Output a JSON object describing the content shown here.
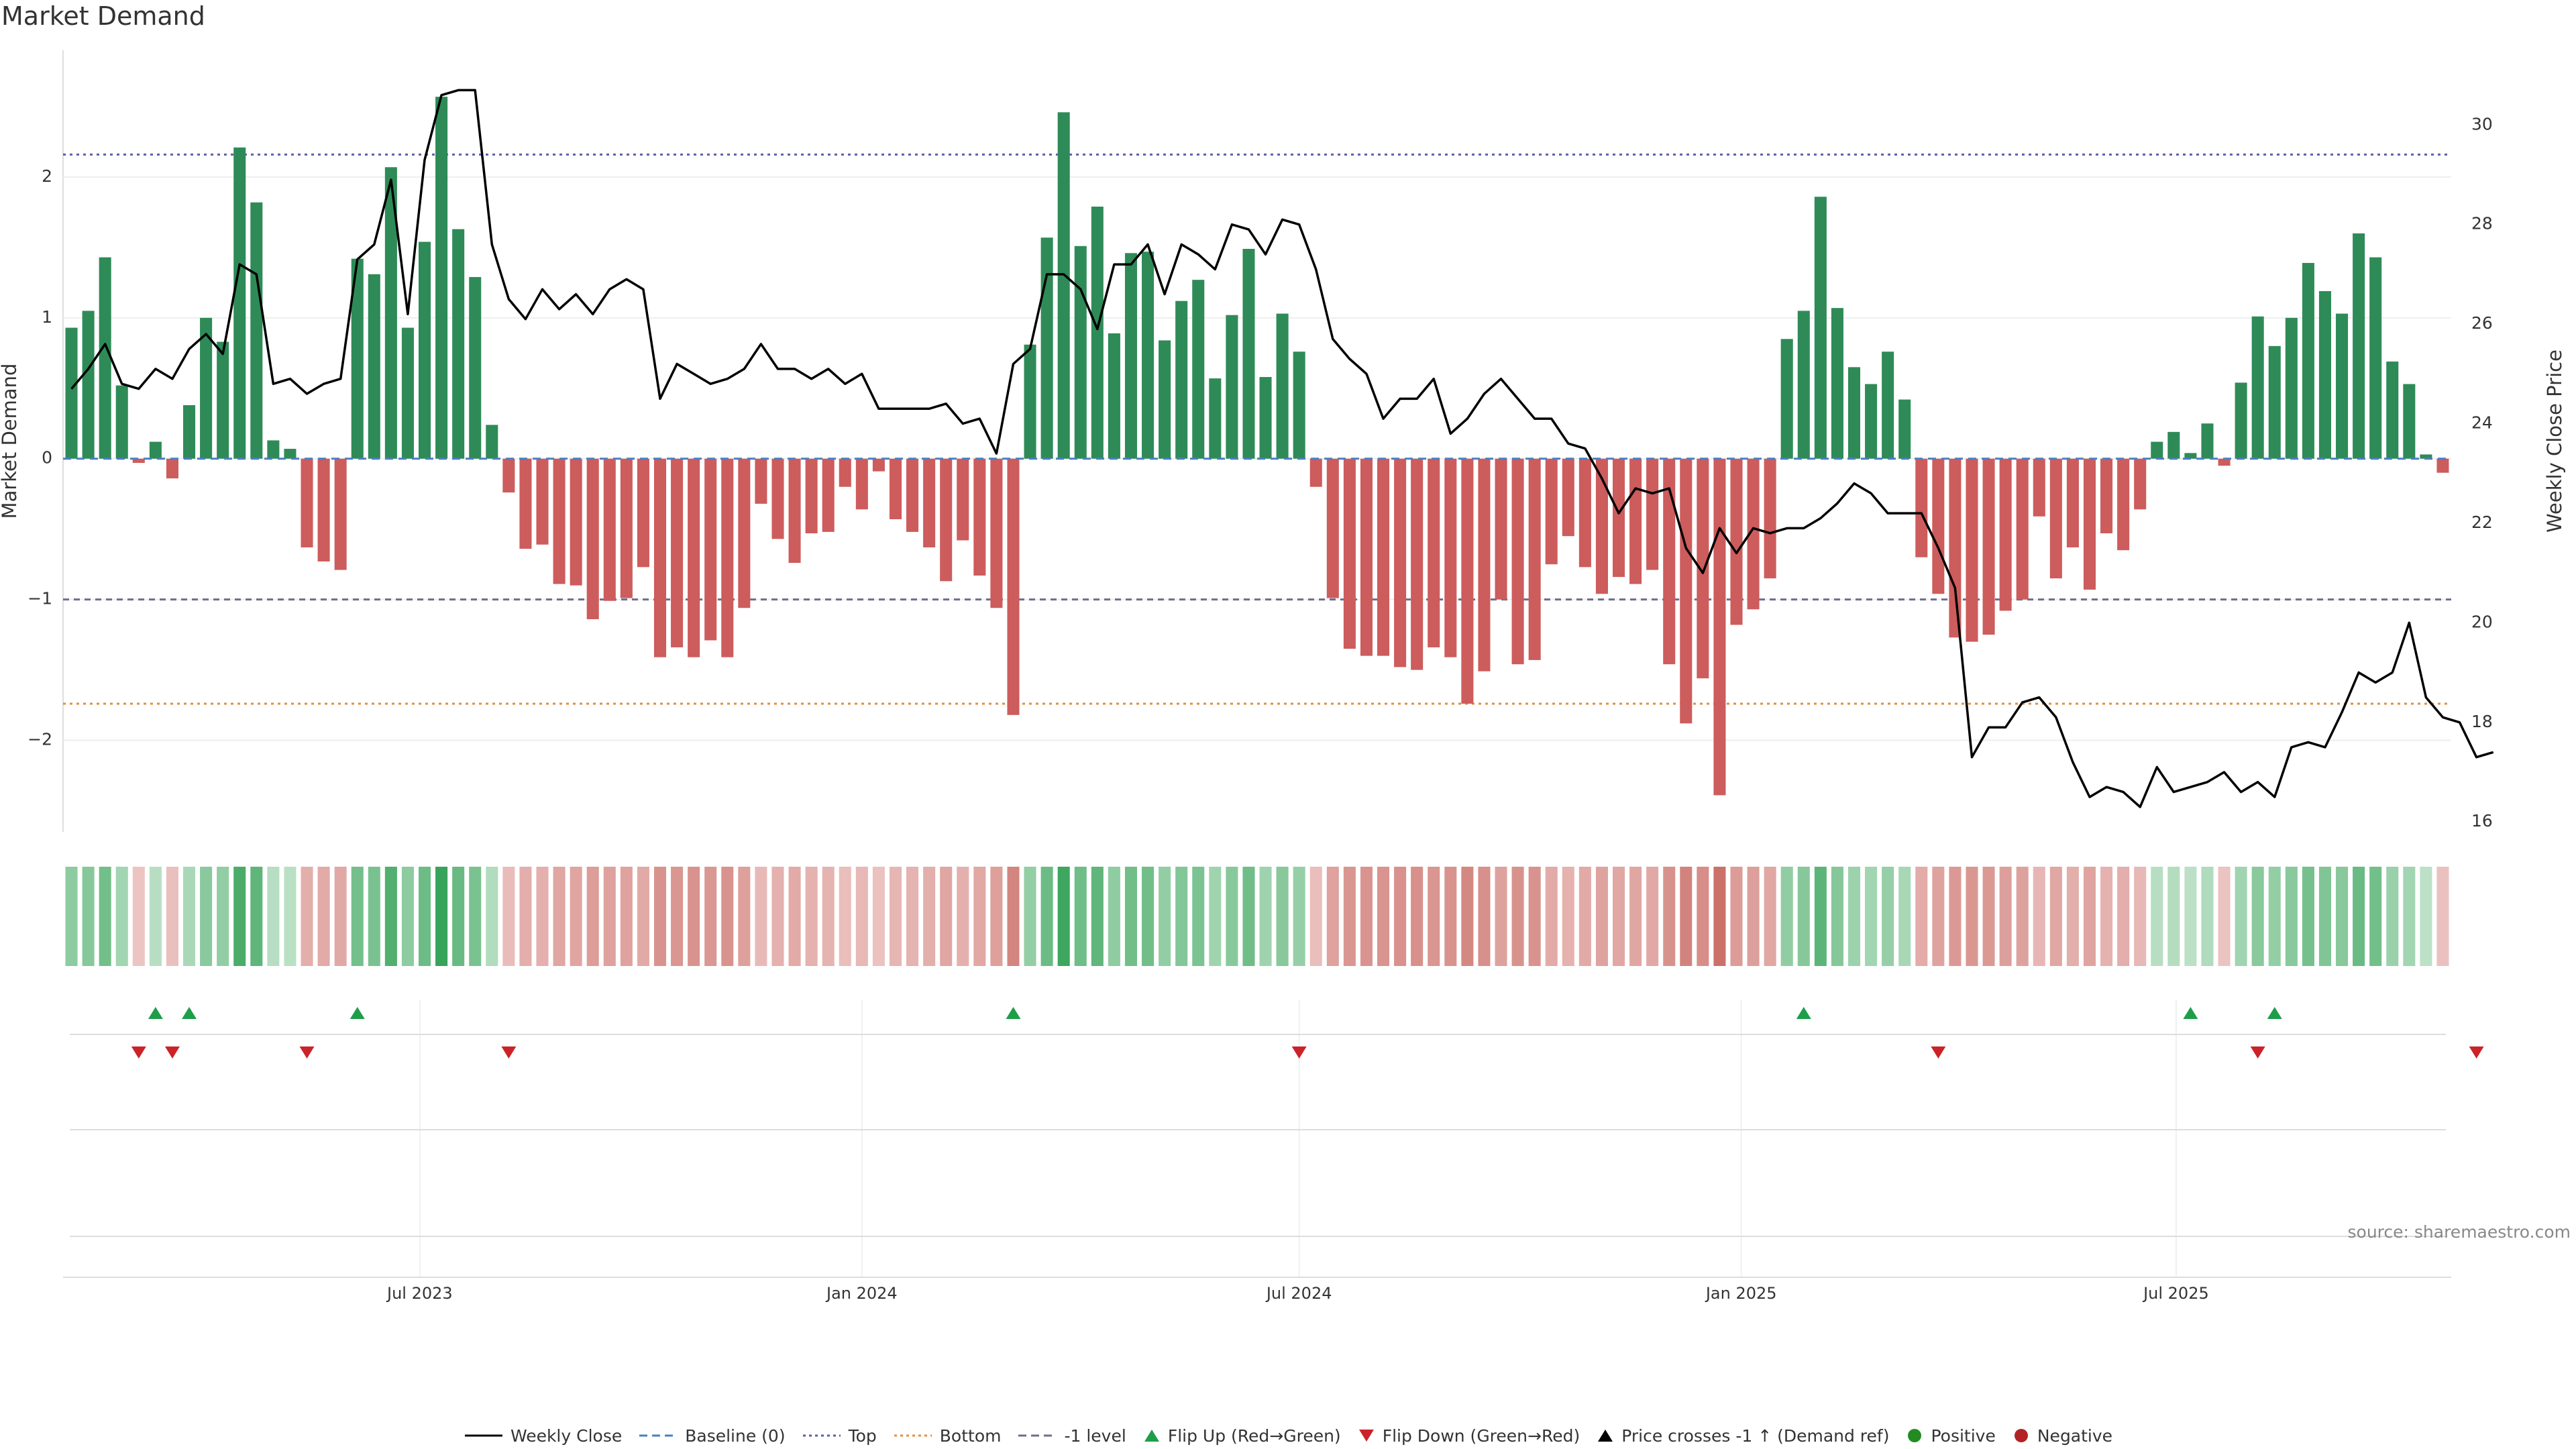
{
  "chart_data": {
    "type": "bar",
    "title": "Market Demand",
    "ylabel_left": "Market Demand",
    "ylabel_right": "Weekly Close Price",
    "source": "source: sharemaestro.com",
    "start_date": "2023-02-06",
    "interval_days": 7,
    "ylim_left": [
      -2.65,
      2.9
    ],
    "ylim_right": [
      15.8,
      31.5
    ],
    "yticks_left": [
      "2",
      "1",
      "0",
      "−1",
      "−2"
    ],
    "yticks_right": [
      "30",
      "28",
      "26",
      "24",
      "22",
      "20",
      "18",
      "16"
    ],
    "xticks": [
      {
        "label": "Jul 2023",
        "date": "2023-07-01"
      },
      {
        "label": "Jan 2024",
        "date": "2024-01-01"
      },
      {
        "label": "Jul 2024",
        "date": "2024-07-01"
      },
      {
        "label": "Jan 2025",
        "date": "2025-01-01"
      },
      {
        "label": "Jul 2025",
        "date": "2025-07-01"
      }
    ],
    "reference_lines": [
      {
        "name": "Top",
        "value": 2.16,
        "color": "#5b5fa8",
        "style": "dotted"
      },
      {
        "name": "-1 level",
        "value": -1.0,
        "color": "#6e6e8a",
        "style": "dashed"
      },
      {
        "name": "Bottom",
        "value": -1.74,
        "color": "#e0913c",
        "style": "dotted"
      }
    ],
    "colors": {
      "positive": "#2e8b57",
      "negative": "#cd5c5c",
      "price": "#000000",
      "flip_up": "#1e9e4a",
      "flip_down": "#cc2229"
    },
    "demand": [
      0.93,
      1.05,
      1.43,
      0.52,
      -0.03,
      0.12,
      -0.14,
      0.38,
      1.0,
      0.83,
      2.21,
      1.82,
      0.13,
      0.07,
      -0.63,
      -0.73,
      -0.79,
      1.42,
      1.31,
      2.07,
      0.93,
      1.54,
      2.57,
      1.63,
      1.29,
      0.24,
      -0.24,
      -0.64,
      -0.61,
      -0.89,
      -0.9,
      -1.14,
      -1.01,
      -0.99,
      -0.77,
      -1.41,
      -1.34,
      -1.41,
      -1.29,
      -1.41,
      -1.06,
      -0.32,
      -0.57,
      -0.74,
      -0.53,
      -0.52,
      -0.2,
      -0.36,
      -0.09,
      -0.43,
      -0.52,
      -0.63,
      -0.87,
      -0.58,
      -0.83,
      -1.06,
      -1.82,
      0.81,
      1.57,
      2.46,
      1.51,
      1.79,
      0.89,
      1.46,
      1.47,
      0.84,
      1.12,
      1.27,
      0.57,
      1.02,
      1.49,
      0.58,
      1.03,
      0.76,
      -0.2,
      -0.99,
      -1.35,
      -1.4,
      -1.4,
      -1.48,
      -1.5,
      -1.34,
      -1.41,
      -1.74,
      -1.51,
      -1.0,
      -1.46,
      -1.43,
      -0.75,
      -0.55,
      -0.77,
      -0.96,
      -0.84,
      -0.89,
      -0.79,
      -1.46,
      -1.88,
      -1.56,
      -2.39,
      -1.18,
      -1.07,
      -0.85,
      0.85,
      1.05,
      1.86,
      1.07,
      0.65,
      0.53,
      0.76,
      0.42,
      -0.7,
      -0.96,
      -1.27,
      -1.3,
      -1.25,
      -1.08,
      -1.0,
      -0.41,
      -0.85,
      -0.63,
      -0.93,
      -0.53,
      -0.65,
      -0.36,
      0.12,
      0.19,
      0.04,
      0.25,
      -0.05,
      0.54,
      1.01,
      0.8,
      1.0,
      1.39,
      1.19,
      1.03,
      1.6,
      1.43,
      0.69,
      0.53,
      0.03,
      -0.1
    ],
    "price": [
      24.7,
      25.1,
      25.6,
      24.8,
      24.7,
      25.1,
      24.9,
      25.5,
      25.8,
      25.4,
      27.2,
      27.0,
      24.8,
      24.9,
      24.6,
      24.8,
      24.9,
      27.3,
      27.6,
      28.9,
      26.2,
      29.3,
      30.6,
      30.7,
      30.7,
      27.6,
      26.5,
      26.1,
      26.7,
      26.3,
      26.6,
      26.2,
      26.7,
      26.9,
      26.7,
      24.5,
      25.2,
      25.0,
      24.8,
      24.9,
      25.1,
      25.6,
      25.1,
      25.1,
      24.9,
      25.1,
      24.8,
      25.0,
      24.3,
      24.3,
      24.3,
      24.3,
      24.4,
      24.0,
      24.1,
      23.4,
      25.2,
      25.5,
      27.0,
      27.0,
      26.7,
      25.9,
      27.2,
      27.2,
      27.6,
      26.6,
      27.6,
      27.4,
      27.1,
      28.0,
      27.9,
      27.4,
      28.1,
      28.0,
      27.1,
      25.7,
      25.3,
      25.0,
      24.1,
      24.5,
      24.5,
      24.9,
      23.8,
      24.1,
      24.6,
      24.9,
      24.5,
      24.1,
      24.1,
      23.6,
      23.5,
      22.9,
      22.2,
      22.7,
      22.6,
      22.7,
      21.5,
      21.0,
      21.9,
      21.4,
      21.9,
      21.8,
      21.9,
      21.9,
      22.1,
      22.4,
      22.8,
      22.6,
      22.2,
      22.2,
      22.2,
      21.5,
      20.7,
      17.3,
      17.9,
      17.9,
      18.4,
      18.5,
      18.1,
      17.2,
      16.5,
      16.7,
      16.6,
      16.3,
      17.1,
      16.6,
      16.7,
      16.8,
      17.0,
      16.6,
      16.8,
      16.5,
      17.5,
      17.6,
      17.5,
      18.2,
      19.0,
      18.8,
      19.0,
      20.0,
      18.5,
      18.1,
      18.0,
      17.3,
      17.4
    ],
    "flip_up_index": [
      5,
      7,
      17,
      56,
      103,
      126,
      131
    ],
    "flip_down_index": [
      4,
      6,
      14,
      26,
      73,
      111,
      130,
      143
    ],
    "legend": [
      {
        "label": "Weekly Close",
        "icon": "solid-line",
        "color": "#000000"
      },
      {
        "label": "Baseline (0)",
        "icon": "dashed-line",
        "color": "#4a7fc1"
      },
      {
        "label": "Top",
        "icon": "dotted-line",
        "color": "#5b5fa8"
      },
      {
        "label": "Bottom",
        "icon": "dotted-line",
        "color": "#e0913c"
      },
      {
        "label": "-1 level",
        "icon": "dashed-line",
        "color": "#6e6e8a"
      },
      {
        "label": "Flip Up (Red→Green)",
        "icon": "triangle-up",
        "color": "#1e9e4a"
      },
      {
        "label": "Flip Down (Green→Red)",
        "icon": "triangle-down",
        "color": "#cc2229"
      },
      {
        "label": "Price crosses -1 ↑ (Demand ref)",
        "icon": "triangle-up",
        "color": "#000000"
      },
      {
        "label": "Positive",
        "icon": "circle",
        "color": "#228b22"
      },
      {
        "label": "Negative",
        "icon": "circle",
        "color": "#b22222"
      }
    ]
  }
}
